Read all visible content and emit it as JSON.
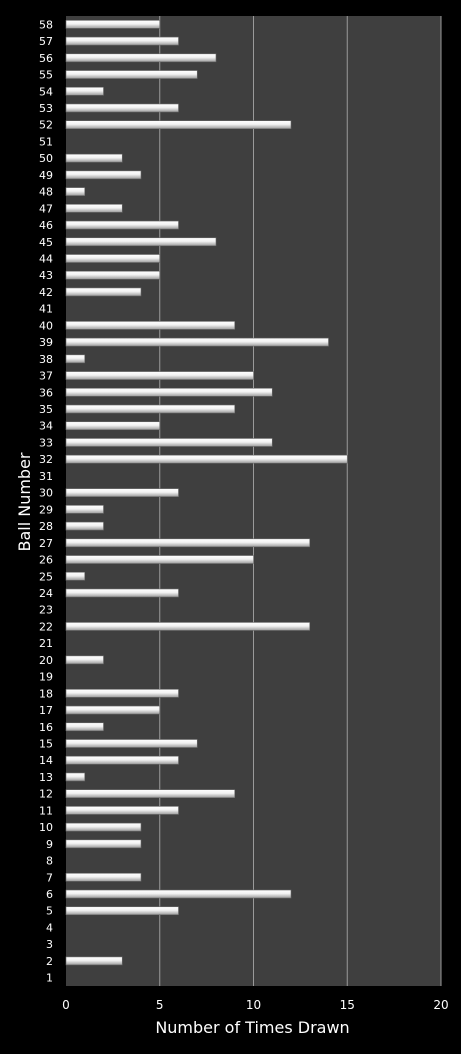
{
  "chart_data": {
    "type": "bar",
    "orientation": "horizontal",
    "title": "",
    "xlabel": "Number of Times Drawn",
    "ylabel": "Ball Number",
    "xlim": [
      0,
      20
    ],
    "xticks": [
      0,
      5,
      10,
      15,
      20
    ],
    "grid": true,
    "legend": "none",
    "colors": {
      "background": "#000000",
      "plot_area": "#3f3f3f",
      "bar": "#e6e6e6",
      "gridline": "#9a9a9a",
      "text": "#ffffff"
    },
    "categories": [
      "1",
      "2",
      "3",
      "4",
      "5",
      "6",
      "7",
      "8",
      "9",
      "10",
      "11",
      "12",
      "13",
      "14",
      "15",
      "16",
      "17",
      "18",
      "19",
      "20",
      "21",
      "22",
      "23",
      "24",
      "25",
      "26",
      "27",
      "28",
      "29",
      "30",
      "31",
      "32",
      "33",
      "34",
      "35",
      "36",
      "37",
      "38",
      "39",
      "40",
      "41",
      "42",
      "43",
      "44",
      "45",
      "46",
      "47",
      "48",
      "49",
      "50",
      "51",
      "52",
      "53",
      "54",
      "55",
      "56",
      "57",
      "58"
    ],
    "values": [
      0,
      3,
      0,
      0,
      6,
      12,
      4,
      0,
      4,
      4,
      6,
      9,
      1,
      6,
      7,
      2,
      5,
      6,
      0,
      2,
      0,
      13,
      0,
      6,
      1,
      10,
      13,
      2,
      2,
      6,
      0,
      15,
      11,
      5,
      9,
      11,
      10,
      1,
      14,
      9,
      0,
      4,
      5,
      5,
      8,
      6,
      3,
      1,
      4,
      3,
      0,
      12,
      6,
      2,
      7,
      8,
      6,
      5
    ]
  }
}
